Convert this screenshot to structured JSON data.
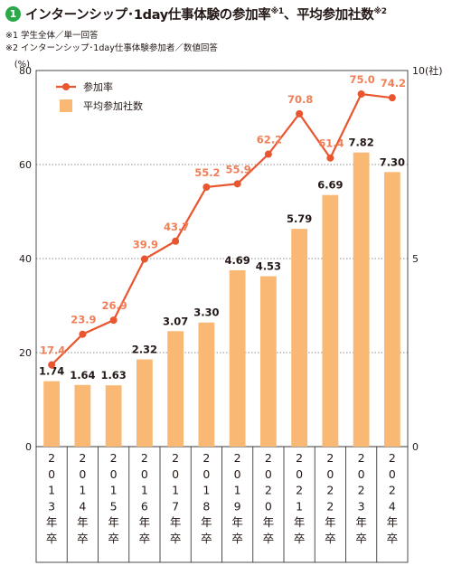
{
  "header": {
    "badge": "1",
    "title_main": "インターンシップ･1day仕事体験の参加率",
    "title_ref1": "※1",
    "title_mid": "、平均参加社数",
    "title_ref2": "※2"
  },
  "notes": [
    "※1 学生全体／単一回答",
    "※2 インターンシップ･1day仕事体験参加者／数値回答"
  ],
  "chart_data": {
    "type": "bar+line",
    "categories": [
      "2013年卒",
      "2014年卒",
      "2015年卒",
      "2016年卒",
      "2017年卒",
      "2018年卒",
      "2019年卒",
      "2020年卒",
      "2021年卒",
      "2022年卒",
      "2023年卒",
      "2024年卒"
    ],
    "series": [
      {
        "name": "参加率",
        "type": "line",
        "axis": "left",
        "color": "#e8552f",
        "label_color": "#f07f57",
        "values": [
          17.4,
          23.9,
          26.9,
          39.9,
          43.7,
          55.2,
          55.9,
          62.2,
          70.8,
          61.4,
          75.0,
          74.2
        ],
        "labels": [
          "17.4",
          "23.9",
          "26.9",
          "39.9",
          "43.7",
          "55.2",
          "55.9",
          "62.2",
          "70.8",
          "61.4",
          "75.0",
          "74.2"
        ]
      },
      {
        "name": "平均参加社数",
        "type": "bar",
        "axis": "right",
        "color": "#f9b874",
        "values": [
          1.74,
          1.64,
          1.63,
          2.32,
          3.07,
          3.3,
          4.69,
          4.53,
          5.79,
          6.69,
          7.82,
          7.3
        ],
        "labels": [
          "1.74",
          "1.64",
          "1.63",
          "2.32",
          "3.07",
          "3.30",
          "4.69",
          "4.53",
          "5.79",
          "6.69",
          "7.82",
          "7.30"
        ]
      }
    ],
    "left_axis": {
      "unit": "(%)",
      "ylim": [
        0,
        80
      ],
      "ticks": [
        0,
        20,
        40,
        60,
        80
      ]
    },
    "right_axis": {
      "unit": "(社)",
      "ylim": [
        0,
        10
      ],
      "ticks": [
        0,
        5,
        10
      ]
    },
    "grid": true,
    "legend_position": "top-left"
  }
}
